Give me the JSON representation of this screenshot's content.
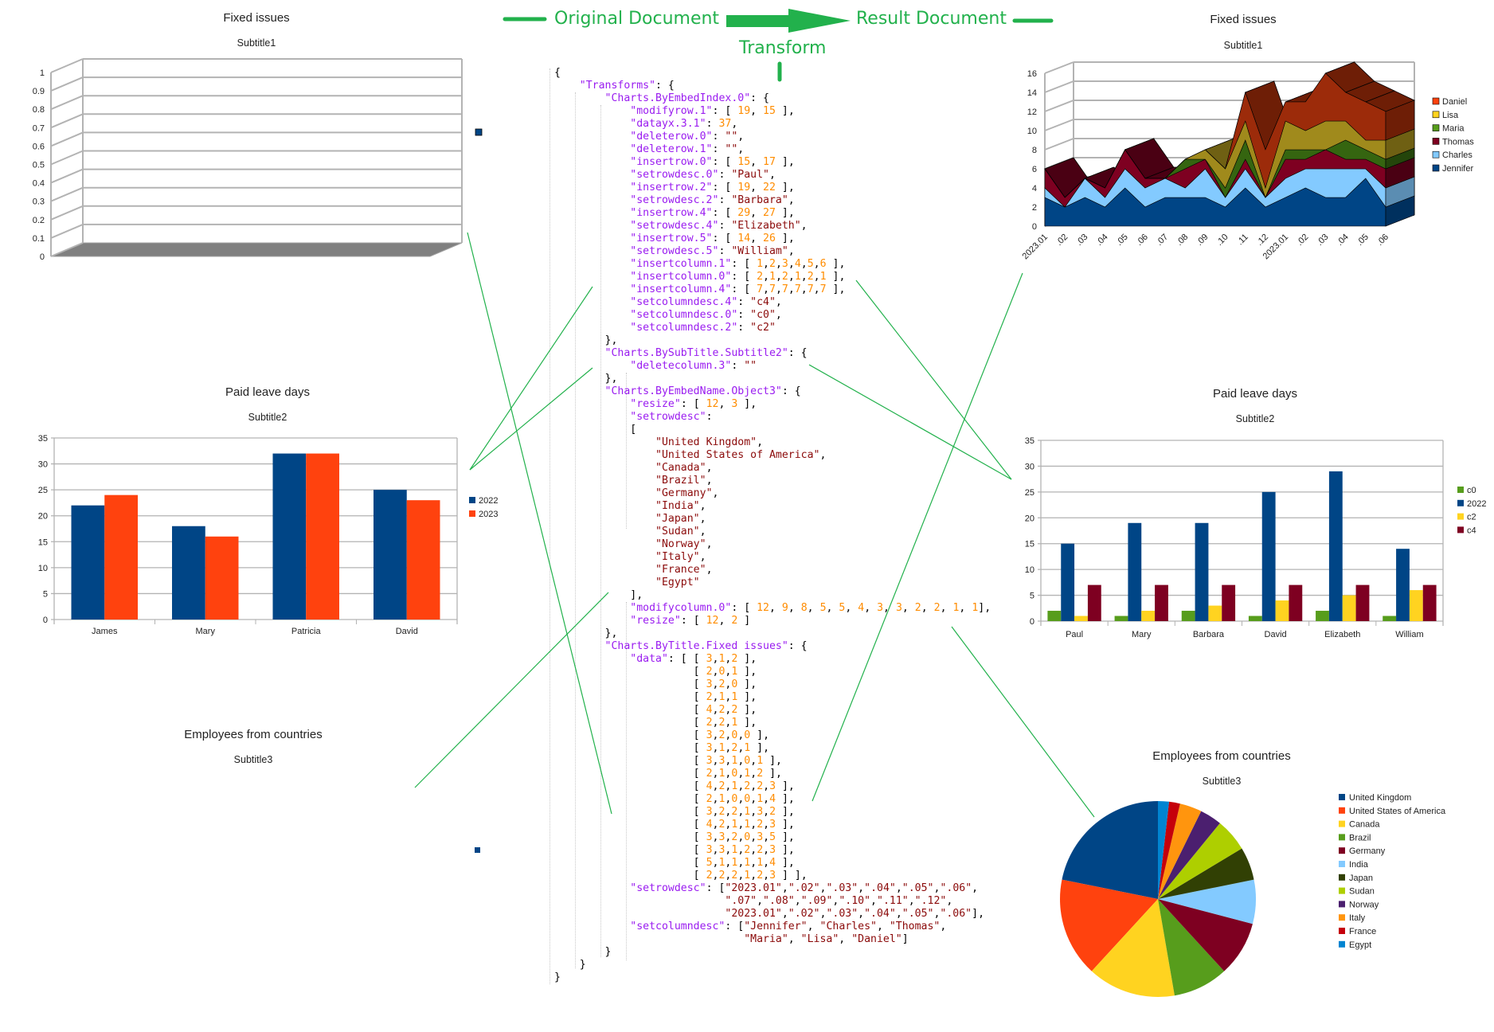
{
  "header": {
    "original_label": "Original Document",
    "result_label": "Result Document",
    "transform_label": "Transform",
    "accent_color": "#22b14c"
  },
  "code_lines": [
    "{",
    "    \"Transforms\": {",
    "        \"Charts.ByEmbedIndex.0\": {",
    "            \"modifyrow.1\": [ 19, 15 ],",
    "            \"datayx.3.1\": 37,",
    "            \"deleterow.0\": \"\",",
    "            \"deleterow.1\": \"\",",
    "            \"insertrow.0\": [ 15, 17 ],",
    "            \"setrowdesc.0\": \"Paul\",",
    "            \"insertrow.2\": [ 19, 22 ],",
    "            \"setrowdesc.2\": \"Barbara\",",
    "            \"insertrow.4\": [ 29, 27 ],",
    "            \"setrowdesc.4\": \"Elizabeth\",",
    "            \"insertrow.5\": [ 14, 26 ],",
    "            \"setrowdesc.5\": \"William\",",
    "            \"insertcolumn.1\": [ 1,2,3,4,5,6 ],",
    "            \"insertcolumn.0\": [ 2,1,2,1,2,1 ],",
    "            \"insertcolumn.4\": [ 7,7,7,7,7,7 ],",
    "            \"setcolumndesc.4\": \"c4\",",
    "            \"setcolumndesc.0\": \"c0\",",
    "            \"setcolumndesc.2\": \"c2\"",
    "        },",
    "        \"Charts.BySubTitle.Subtitle2\": {",
    "            \"deletecolumn.3\": \"\"",
    "        },",
    "        \"Charts.ByEmbedName.Object3\": {",
    "            \"resize\": [ 12, 3 ],",
    "            \"setrowdesc\":",
    "            [",
    "                \"United Kingdom\",",
    "                \"United States of America\",",
    "                \"Canada\",",
    "                \"Brazil\",",
    "                \"Germany\",",
    "                \"India\",",
    "                \"Japan\",",
    "                \"Sudan\",",
    "                \"Norway\",",
    "                \"Italy\",",
    "                \"France\",",
    "                \"Egypt\"",
    "            ],",
    "            \"modifycolumn.0\": [ 12, 9, 8, 5, 5, 4, 3, 3, 2, 2, 1, 1],",
    "            \"resize\": [ 12, 2 ]",
    "        },",
    "        \"Charts.ByTitle.Fixed issues\": {",
    "            \"data\": [ [ 3,1,2 ],",
    "                      [ 2,0,1 ],",
    "                      [ 3,2,0 ],",
    "                      [ 2,1,1 ],",
    "                      [ 4,2,2 ],",
    "                      [ 2,2,1 ],",
    "                      [ 3,2,0,0 ],",
    "                      [ 3,1,2,1 ],",
    "                      [ 3,3,1,0,1 ],",
    "                      [ 2,1,0,1,2 ],",
    "                      [ 4,2,1,2,2,3 ],",
    "                      [ 2,1,0,0,1,4 ],",
    "                      [ 3,2,2,1,3,2 ],",
    "                      [ 4,2,1,1,2,3 ],",
    "                      [ 3,3,2,0,3,5 ],",
    "                      [ 3,3,1,2,2,3 ],",
    "                      [ 5,1,1,1,1,4 ],",
    "                      [ 2,2,2,1,2,3 ] ],",
    "            \"setrowdesc\": [\"2023.01\",\".02\",\".03\",\".04\",\".05\",\".06\",",
    "                           \".07\",\".08\",\".09\",\".10\",\".11\",\".12\",",
    "                           \"2023.01\",\".02\",\".03\",\".04\",\".05\",\".06\"],",
    "            \"setcolumndesc\": [\"Jennifer\", \"Charles\", \"Thomas\",",
    "                              \"Maria\", \"Lisa\", \"Daniel\"]",
    "        }",
    "    }",
    "}"
  ],
  "chart_data": [
    {
      "id": "orig-fixed-issues",
      "type": "area",
      "title": "Fixed issues",
      "subtitle": "Subtitle1",
      "ylim": [
        0,
        1
      ],
      "yticks": [
        "0",
        "0.1",
        "0.2",
        "0.3",
        "0.4",
        "0.5",
        "0.6",
        "0.7",
        "0.8",
        "0.9",
        "1"
      ],
      "series": [
        {
          "name": "",
          "color": "#004586",
          "values": []
        }
      ]
    },
    {
      "id": "orig-paid-leave",
      "type": "bar",
      "title": "Paid leave days",
      "subtitle": "Subtitle2",
      "categories": [
        "James",
        "Mary",
        "Patricia",
        "David"
      ],
      "ylim": [
        0,
        35
      ],
      "yticks": [
        "0",
        "5",
        "10",
        "15",
        "20",
        "25",
        "30",
        "35"
      ],
      "legend": "right",
      "series": [
        {
          "name": "2022",
          "color": "#004586",
          "values": [
            22,
            18,
            32,
            25
          ]
        },
        {
          "name": "2023",
          "color": "#ff420e",
          "values": [
            24,
            16,
            32,
            23
          ]
        }
      ]
    },
    {
      "id": "orig-employees",
      "type": "pie",
      "title": "Employees from countries",
      "subtitle": "Subtitle3",
      "series": [
        {
          "name": "",
          "color": "#004586",
          "values": []
        }
      ]
    },
    {
      "id": "result-fixed-issues",
      "type": "area",
      "stacked": true,
      "title": "Fixed issues",
      "subtitle": "Subtitle1",
      "ylim": [
        0,
        16
      ],
      "yticks": [
        "0",
        "2",
        "4",
        "6",
        "8",
        "10",
        "12",
        "14",
        "16"
      ],
      "categories": [
        "2023.01",
        ".02",
        ".03",
        ".04",
        ".05",
        ".06",
        ".07",
        ".08",
        ".09",
        ".10",
        ".11",
        ".12",
        "2023.01",
        ".02",
        ".03",
        ".04",
        ".05",
        ".06"
      ],
      "legend": "right",
      "series": [
        {
          "name": "Jennifer",
          "color": "#004586",
          "fill": "#004586",
          "top": "#00305e",
          "values": [
            3,
            2,
            3,
            2,
            4,
            2,
            3,
            3,
            3,
            2,
            4,
            2,
            3,
            4,
            3,
            3,
            5,
            2
          ]
        },
        {
          "name": "Charles",
          "color": "#83caff",
          "fill": "#83caff",
          "top": "#5b8db2",
          "values": [
            1,
            0,
            2,
            1,
            2,
            2,
            2,
            1,
            3,
            1,
            2,
            1,
            2,
            2,
            3,
            3,
            1,
            2
          ]
        },
        {
          "name": "Thomas",
          "color": "#7e0021",
          "fill": "#7e0021",
          "top": "#4a0013",
          "values": [
            2,
            1,
            0,
            1,
            2,
            1,
            0,
            2,
            1,
            0,
            1,
            0,
            2,
            1,
            2,
            1,
            1,
            2
          ]
        },
        {
          "name": "Maria",
          "color": "#579d1c",
          "fill": "#356510",
          "top": "#24450b",
          "values": [
            0,
            0,
            0,
            0,
            0,
            0,
            0,
            1,
            0,
            1,
            2,
            0,
            1,
            1,
            0,
            2,
            1,
            1
          ]
        },
        {
          "name": "Lisa",
          "color": "#ffd320",
          "fill": "#a08a1c",
          "top": "#6f6013",
          "values": [
            0,
            0,
            0,
            0,
            0,
            0,
            0,
            0,
            1,
            2,
            2,
            1,
            3,
            2,
            3,
            2,
            1,
            2
          ]
        },
        {
          "name": "Daniel",
          "color": "#ff420e",
          "fill": "#9c2b0a",
          "top": "#6e1e06",
          "values": [
            0,
            0,
            0,
            0,
            0,
            0,
            0,
            0,
            0,
            0,
            3,
            4,
            2,
            3,
            5,
            3,
            4,
            3
          ]
        }
      ]
    },
    {
      "id": "result-paid-leave",
      "type": "bar",
      "title": "Paid leave days",
      "subtitle": "Subtitle2",
      "categories": [
        "Paul",
        "Mary",
        "Barbara",
        "David",
        "Elizabeth",
        "William"
      ],
      "ylim": [
        0,
        35
      ],
      "yticks": [
        "0",
        "5",
        "10",
        "15",
        "20",
        "25",
        "30",
        "35"
      ],
      "legend": "right",
      "series": [
        {
          "name": "c0",
          "color": "#579d1c",
          "values": [
            2,
            1,
            2,
            1,
            2,
            1
          ]
        },
        {
          "name": "2022",
          "color": "#004586",
          "values": [
            15,
            19,
            19,
            25,
            29,
            14
          ]
        },
        {
          "name": "c2",
          "color": "#ffd320",
          "values": [
            1,
            2,
            3,
            4,
            5,
            6
          ]
        },
        {
          "name": "c4",
          "color": "#7e0021",
          "values": [
            7,
            7,
            7,
            7,
            7,
            7
          ]
        }
      ]
    },
    {
      "id": "result-employees",
      "type": "pie",
      "title": "Employees from countries",
      "subtitle": "Subtitle3",
      "legend": "right",
      "categories": [
        "United Kingdom",
        "United States of America",
        "Canada",
        "Brazil",
        "Germany",
        "India",
        "Japan",
        "Sudan",
        "Norway",
        "Italy",
        "France",
        "Egypt"
      ],
      "values": [
        12,
        9,
        8,
        5,
        5,
        4,
        3,
        3,
        2,
        2,
        1,
        1
      ],
      "colors": [
        "#004586",
        "#ff420e",
        "#ffd320",
        "#579d1c",
        "#7e0021",
        "#83caff",
        "#314004",
        "#aecf00",
        "#4b1f6f",
        "#ff950e",
        "#c5000b",
        "#0084d1"
      ]
    }
  ]
}
